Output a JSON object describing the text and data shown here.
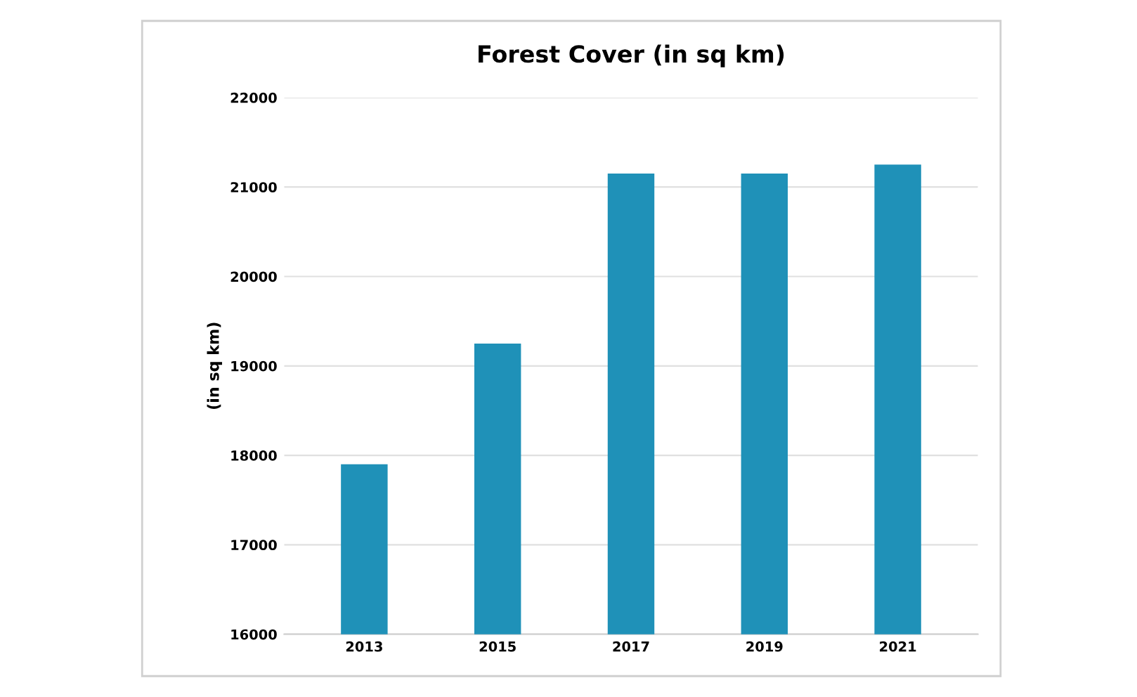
{
  "chart_data": {
    "type": "bar",
    "title": "Forest Cover (in sq km)",
    "ylabel": "(in sq km)",
    "categories": [
      "2013",
      "2015",
      "2017",
      "2019",
      "2021"
    ],
    "values": [
      17900,
      19250,
      21150,
      21150,
      21250
    ],
    "color": "#1f91b8",
    "ylim": [
      16000,
      22000
    ],
    "yticks": [
      16000,
      17000,
      18000,
      19000,
      20000,
      21000,
      22000
    ],
    "grid": "y",
    "legend": false
  }
}
